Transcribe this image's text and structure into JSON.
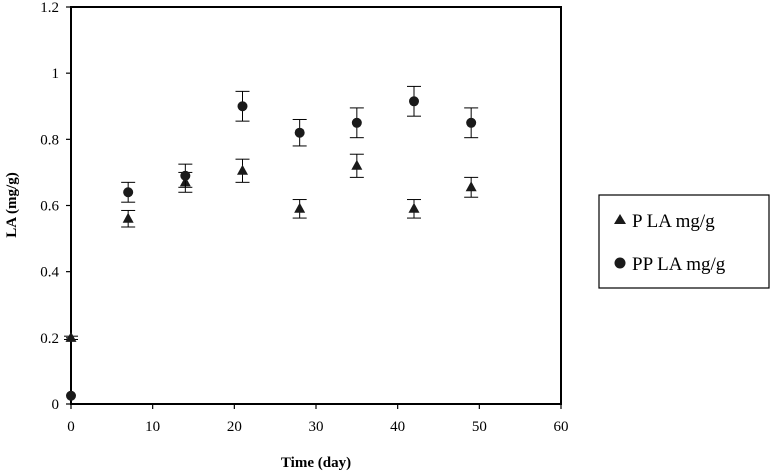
{
  "chart_data": {
    "type": "scatter",
    "title": "",
    "xlabel": "Time (day)",
    "ylabel": "LA (mg/g)",
    "xlim": [
      0,
      60
    ],
    "ylim": [
      0,
      1.2
    ],
    "x_ticks": [
      "0",
      "10",
      "20",
      "30",
      "40",
      "50",
      "60"
    ],
    "y_ticks": [
      "0",
      "0.2",
      "0.4",
      "0.6",
      "0.8",
      "1",
      "1.2"
    ],
    "grid": false,
    "legend_position": "right",
    "series": [
      {
        "name": "P LA mg/g",
        "marker": "triangle",
        "color": "#1a1a1a",
        "x": [
          0,
          7,
          14,
          21,
          28,
          35,
          42,
          49
        ],
        "y": [
          0.2,
          0.56,
          0.67,
          0.705,
          0.59,
          0.72,
          0.59,
          0.655
        ],
        "error": [
          0.005,
          0.025,
          0.03,
          0.035,
          0.028,
          0.035,
          0.028,
          0.03
        ]
      },
      {
        "name": "PP LA mg/g",
        "marker": "circle",
        "color": "#1a1a1a",
        "x": [
          0,
          7,
          14,
          21,
          28,
          35,
          42,
          49
        ],
        "y": [
          0.025,
          0.64,
          0.69,
          0.9,
          0.82,
          0.85,
          0.915,
          0.85
        ],
        "error": [
          0.0,
          0.03,
          0.035,
          0.045,
          0.04,
          0.045,
          0.045,
          0.045
        ]
      }
    ]
  }
}
